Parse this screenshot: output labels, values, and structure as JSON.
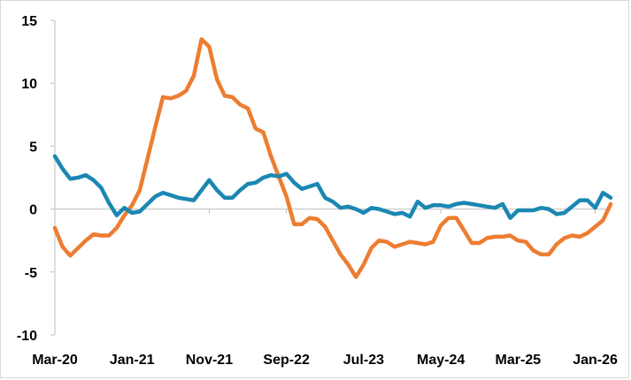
{
  "chart_data": {
    "type": "line",
    "title": "",
    "xlabel": "",
    "ylabel": "",
    "ylim": [
      -10,
      15
    ],
    "y_ticks": [
      15,
      10,
      5,
      0,
      -5,
      -10
    ],
    "grid": false,
    "legend": "none",
    "x_tick_labels": [
      {
        "label": "Mar-20",
        "index": 0
      },
      {
        "label": "Jan-21",
        "index": 10
      },
      {
        "label": "Nov-21",
        "index": 20
      },
      {
        "label": "Sep-22",
        "index": 30
      },
      {
        "label": "Jul-23",
        "index": 40
      },
      {
        "label": "May-24",
        "index": 50
      },
      {
        "label": "Mar-25",
        "index": 60
      },
      {
        "label": "Jan-26",
        "index": 70
      }
    ],
    "x_count": 73,
    "series": [
      {
        "color": "#ED7D31",
        "values": [
          -1.5,
          -3.0,
          -3.7,
          -3.1,
          -2.5,
          -2.0,
          -2.1,
          -2.1,
          -1.5,
          -0.5,
          0.3,
          1.5,
          4.0,
          6.5,
          8.9,
          8.8,
          9.0,
          9.4,
          10.6,
          13.5,
          12.9,
          10.3,
          9.0,
          8.9,
          8.3,
          8.0,
          6.4,
          6.1,
          4.2,
          2.6,
          1.0,
          -1.2,
          -1.2,
          -0.7,
          -0.8,
          -1.4,
          -2.5,
          -3.6,
          -4.4,
          -5.4,
          -4.4,
          -3.1,
          -2.5,
          -2.6,
          -3.0,
          -2.8,
          -2.6,
          -2.7,
          -2.8,
          -2.6,
          -1.3,
          -0.7,
          -0.7,
          -1.7,
          -2.7,
          -2.7,
          -2.3,
          -2.2,
          -2.2,
          -2.1,
          -2.5,
          -2.6,
          -3.3,
          -3.6,
          -3.6,
          -2.8,
          -2.3,
          -2.1,
          -2.2,
          -1.9,
          -1.4,
          -0.9,
          0.4
        ]
      },
      {
        "color": "#1B87B2",
        "values": [
          4.2,
          3.2,
          2.4,
          2.5,
          2.7,
          2.3,
          1.7,
          0.5,
          -0.5,
          0.1,
          -0.3,
          -0.2,
          0.4,
          1.0,
          1.3,
          1.1,
          0.9,
          0.8,
          0.7,
          1.5,
          2.3,
          1.5,
          0.9,
          0.9,
          1.5,
          2.0,
          2.1,
          2.5,
          2.7,
          2.6,
          2.8,
          2.1,
          1.6,
          1.8,
          2.0,
          0.9,
          0.6,
          0.1,
          0.2,
          0.0,
          -0.3,
          0.1,
          0.0,
          -0.2,
          -0.4,
          -0.3,
          -0.6,
          0.6,
          0.1,
          0.3,
          0.3,
          0.2,
          0.4,
          0.5,
          0.4,
          0.3,
          0.2,
          0.1,
          0.4,
          -0.7,
          -0.1,
          -0.1,
          -0.1,
          0.1,
          0.0,
          -0.4,
          -0.3,
          0.2,
          0.7,
          0.7,
          0.1,
          1.3,
          0.9
        ]
      }
    ]
  }
}
